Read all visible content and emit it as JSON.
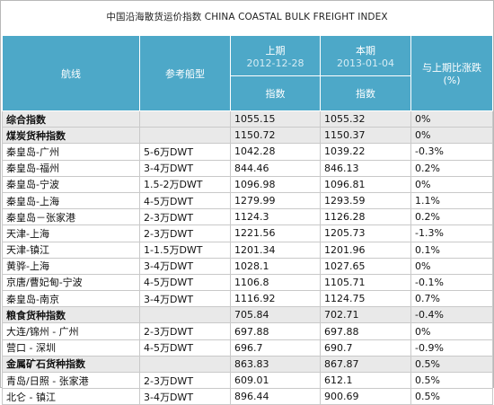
{
  "title": "中国沿海散货运价指数 CHINA COASTAL BULK FREIGHT INDEX",
  "header": {
    "route": "航线",
    "ship_type": "参考船型",
    "prev_label": "上期",
    "prev_date": "2012-12-28",
    "curr_label": "本期",
    "curr_date": "2013-01-04",
    "change_label": "与上期比涨跌",
    "change_unit": "(%)",
    "index_label_prev": "指数",
    "index_label_curr": "指数"
  },
  "rows": [
    {
      "route": "综合指数",
      "ship": "",
      "prev": "1055.15",
      "curr": "1055.32",
      "change": "0%",
      "category": true
    },
    {
      "route": "煤炭货种指数",
      "ship": "",
      "prev": "1150.72",
      "curr": "1150.37",
      "change": "0%",
      "category": true
    },
    {
      "route": "秦皇岛-广州",
      "ship": "5-6万DWT",
      "prev": "1042.28",
      "curr": "1039.22",
      "change": "-0.3%",
      "category": false
    },
    {
      "route": "秦皇岛-福州",
      "ship": "3-4万DWT",
      "prev": "844.46",
      "curr": "846.13",
      "change": "0.2%",
      "category": false
    },
    {
      "route": "秦皇岛-宁波",
      "ship": "1.5-2万DWT",
      "prev": "1096.98",
      "curr": "1096.81",
      "change": "0%",
      "category": false
    },
    {
      "route": "秦皇岛-上海",
      "ship": "4-5万DWT",
      "prev": "1279.99",
      "curr": "1293.59",
      "change": "1.1%",
      "category": false
    },
    {
      "route": "秦皇岛－张家港",
      "ship": "2-3万DWT",
      "prev": "1124.3",
      "curr": "1126.28",
      "change": "0.2%",
      "category": false
    },
    {
      "route": "天津-上海",
      "ship": "2-3万DWT",
      "prev": "1221.56",
      "curr": "1205.73",
      "change": "-1.3%",
      "category": false
    },
    {
      "route": "天津-镇江",
      "ship": "1-1.5万DWT",
      "prev": "1201.34",
      "curr": "1201.96",
      "change": "0.1%",
      "category": false
    },
    {
      "route": "黄骅-上海",
      "ship": "3-4万DWT",
      "prev": "1028.1",
      "curr": "1027.65",
      "change": "0%",
      "category": false
    },
    {
      "route": "京唐/曹妃甸-宁波",
      "ship": "4-5万DWT",
      "prev": "1106.8",
      "curr": "1105.71",
      "change": "-0.1%",
      "category": false
    },
    {
      "route": "秦皇岛-南京",
      "ship": "3-4万DWT",
      "prev": "1116.92",
      "curr": "1124.75",
      "change": "0.7%",
      "category": false
    },
    {
      "route": "粮食货种指数",
      "ship": "",
      "prev": "705.84",
      "curr": "702.71",
      "change": "-0.4%",
      "category": true
    },
    {
      "route": "大连/锦州 - 广州",
      "ship": "2-3万DWT",
      "prev": "697.88",
      "curr": "697.88",
      "change": "0%",
      "category": false
    },
    {
      "route": "营口 - 深圳",
      "ship": "4-5万DWT",
      "prev": "696.7",
      "curr": "690.7",
      "change": "-0.9%",
      "category": false
    },
    {
      "route": "金属矿石货种指数",
      "ship": "",
      "prev": "863.83",
      "curr": "867.87",
      "change": "0.5%",
      "category": true
    },
    {
      "route": "青岛/日照 - 张家港",
      "ship": "2-3万DWT",
      "prev": "609.01",
      "curr": "612.1",
      "change": "0.5%",
      "category": false
    },
    {
      "route": "北仑 - 镇江",
      "ship": "3-4万DWT",
      "prev": "896.44",
      "curr": "900.69",
      "change": "0.5%",
      "category": false
    }
  ]
}
